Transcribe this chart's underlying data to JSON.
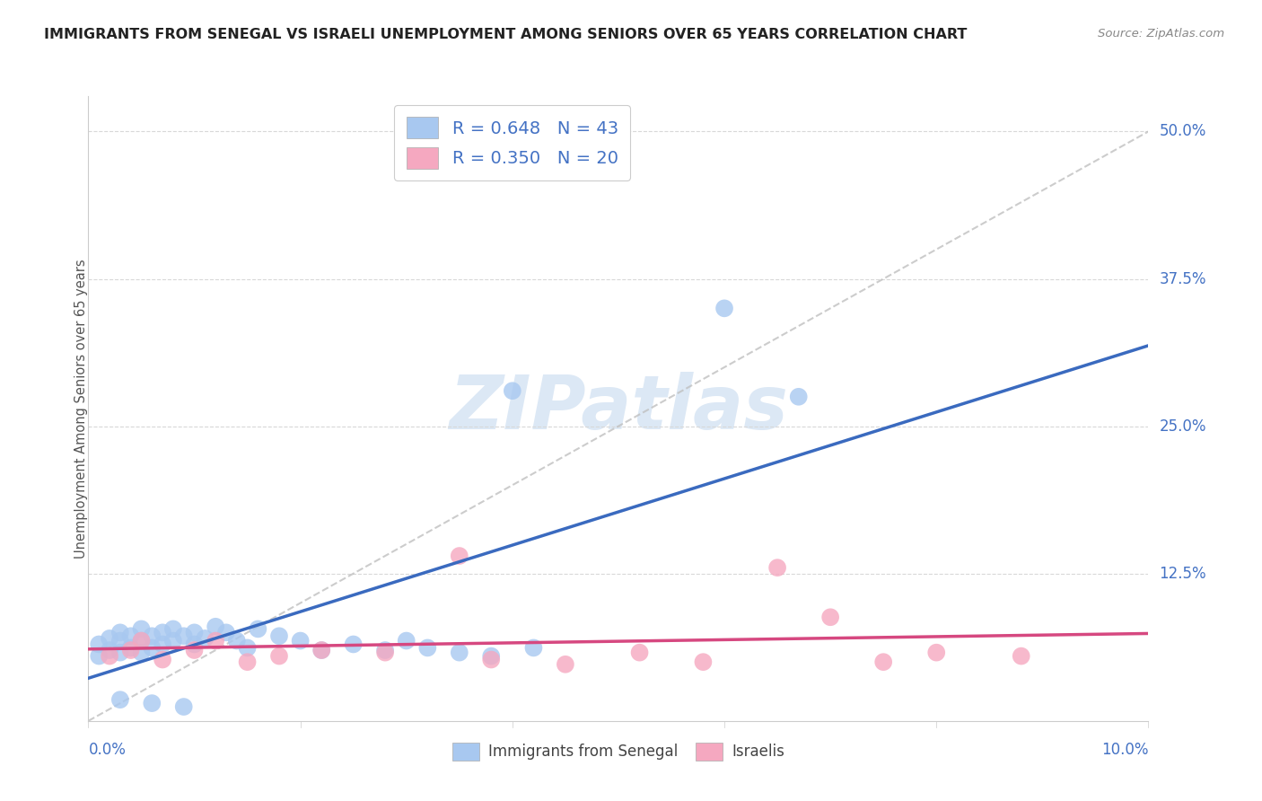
{
  "title": "IMMIGRANTS FROM SENEGAL VS ISRAELI UNEMPLOYMENT AMONG SENIORS OVER 65 YEARS CORRELATION CHART",
  "source": "Source: ZipAtlas.com",
  "ylabel": "Unemployment Among Seniors over 65 years",
  "series1_name": "Immigrants from Senegal",
  "series1_color": "#a8c8f0",
  "series1_line_color": "#3a6abf",
  "series2_name": "Israelis",
  "series2_color": "#f5a8c0",
  "series2_line_color": "#d64880",
  "ref_line_color": "#c0c0c0",
  "background_color": "#ffffff",
  "grid_color": "#d8d8d8",
  "watermark": "ZIPatlas",
  "watermark_color": "#dce8f5",
  "title_color": "#222222",
  "source_color": "#888888",
  "axis_tick_color": "#4472c4",
  "ylabel_color": "#555555",
  "legend_text_color": "#4472c4",
  "legend_border_color": "#cccccc",
  "bottom_legend_color": "#444444",
  "legend1_label": "R = 0.648   N = 43",
  "legend2_label": "R = 0.350   N = 20",
  "xlim": [
    0.0,
    0.1
  ],
  "ylim": [
    0.0,
    0.53
  ],
  "ytick_vals": [
    0.125,
    0.25,
    0.375,
    0.5
  ],
  "ytick_labels": [
    "12.5%",
    "25.0%",
    "37.5%",
    "50.0%"
  ],
  "blue_x": [
    0.001,
    0.001,
    0.002,
    0.002,
    0.003,
    0.003,
    0.003,
    0.004,
    0.004,
    0.005,
    0.005,
    0.005,
    0.006,
    0.006,
    0.007,
    0.007,
    0.008,
    0.008,
    0.009,
    0.01,
    0.01,
    0.011,
    0.012,
    0.013,
    0.014,
    0.015,
    0.016,
    0.018,
    0.02,
    0.022,
    0.025,
    0.028,
    0.03,
    0.032,
    0.035,
    0.038,
    0.042,
    0.003,
    0.006,
    0.009,
    0.04,
    0.06,
    0.067
  ],
  "blue_y": [
    0.055,
    0.065,
    0.06,
    0.07,
    0.058,
    0.068,
    0.075,
    0.062,
    0.072,
    0.068,
    0.078,
    0.058,
    0.072,
    0.062,
    0.065,
    0.075,
    0.068,
    0.078,
    0.072,
    0.065,
    0.075,
    0.07,
    0.08,
    0.075,
    0.068,
    0.062,
    0.078,
    0.072,
    0.068,
    0.06,
    0.065,
    0.06,
    0.068,
    0.062,
    0.058,
    0.055,
    0.062,
    0.018,
    0.015,
    0.012,
    0.28,
    0.35,
    0.275
  ],
  "pink_x": [
    0.002,
    0.004,
    0.005,
    0.007,
    0.01,
    0.012,
    0.015,
    0.018,
    0.022,
    0.028,
    0.035,
    0.038,
    0.045,
    0.052,
    0.058,
    0.065,
    0.07,
    0.075,
    0.08,
    0.088
  ],
  "pink_y": [
    0.055,
    0.06,
    0.068,
    0.052,
    0.06,
    0.068,
    0.05,
    0.055,
    0.06,
    0.058,
    0.14,
    0.052,
    0.048,
    0.058,
    0.05,
    0.13,
    0.088,
    0.05,
    0.058,
    0.055
  ]
}
